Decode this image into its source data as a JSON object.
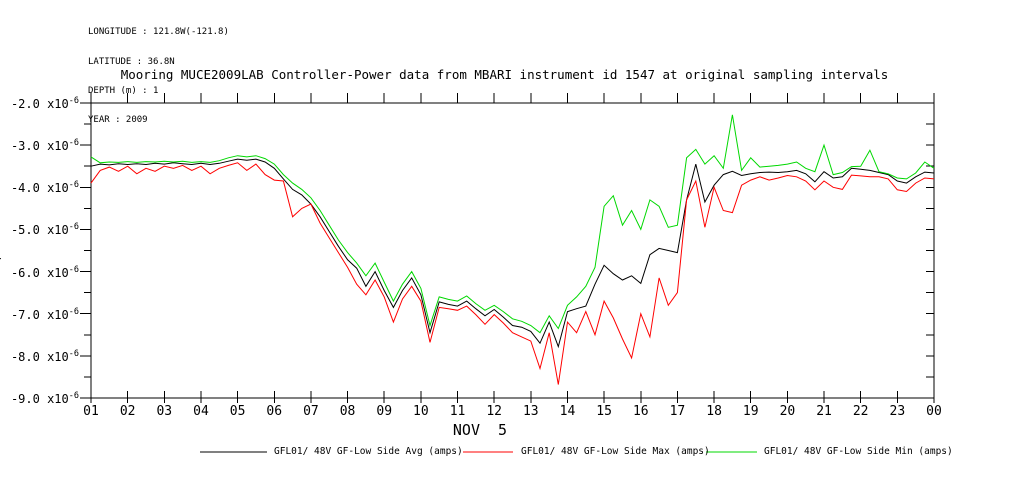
{
  "meta_block": {
    "lines": [
      "LONGITUDE : 121.8W(-121.8)",
      "LATITUDE : 36.8N",
      "DEPTH (m) : 1",
      "YEAR : 2009"
    ]
  },
  "title": "Mooring MUCE2009LAB Controller-Power data from MBARI instrument id 1547 at original sampling intervals",
  "chart_data": {
    "type": "line",
    "title": "Mooring MUCE2009LAB Controller-Power data from MBARI instrument id 1547 at original sampling intervals",
    "grid": false,
    "legend_position": "bottom",
    "x_start": 1,
    "x_step": 0.25,
    "x_axis": {
      "range": [
        1,
        24
      ],
      "tick_labels": [
        "01",
        "02",
        "03",
        "04",
        "05",
        "06",
        "07",
        "08",
        "09",
        "10",
        "11",
        "12",
        "13",
        "14",
        "15",
        "16",
        "17",
        "18",
        "19",
        "20",
        "21",
        "22",
        "23",
        "00"
      ],
      "date_label": "NOV  5"
    },
    "y_axis": {
      "range_e6": [
        -9,
        -2
      ],
      "tick_labels": [
        "-2.0",
        "-3.0",
        "-4.0",
        "-5.0",
        "-6.0",
        "-7.0",
        "-8.0",
        "-9.0"
      ],
      "exponent_base": "x10",
      "exponent_sup": "-6",
      "units": "amps",
      "clipped_label": "amps",
      "minor_tick_step_e6": 0.5
    },
    "value_scale": "1e-6",
    "series": [
      {
        "name": "GFL01/ 48V GF-Low Side Avg (amps)",
        "color": "#000000",
        "values": [
          -3.5,
          -3.45,
          -3.47,
          -3.44,
          -3.46,
          -3.44,
          -3.46,
          -3.43,
          -3.45,
          -3.42,
          -3.44,
          -3.46,
          -3.43,
          -3.46,
          -3.43,
          -3.38,
          -3.33,
          -3.36,
          -3.33,
          -3.4,
          -3.55,
          -3.8,
          -4.05,
          -4.18,
          -4.4,
          -4.7,
          -5.05,
          -5.4,
          -5.72,
          -5.92,
          -6.35,
          -6.0,
          -6.45,
          -6.85,
          -6.45,
          -6.15,
          -6.55,
          -7.45,
          -6.72,
          -6.78,
          -6.82,
          -6.7,
          -6.88,
          -7.05,
          -6.9,
          -7.08,
          -7.28,
          -7.32,
          -7.42,
          -7.7,
          -7.2,
          -7.78,
          -6.95,
          -6.88,
          -6.82,
          -6.3,
          -5.85,
          -6.05,
          -6.2,
          -6.1,
          -6.28,
          -5.6,
          -5.45,
          -5.5,
          -5.55,
          -4.3,
          -3.45,
          -4.35,
          -3.95,
          -3.7,
          -3.62,
          -3.72,
          -3.68,
          -3.65,
          -3.64,
          -3.65,
          -3.63,
          -3.6,
          -3.68,
          -3.87,
          -3.63,
          -3.78,
          -3.75,
          -3.55,
          -3.57,
          -3.6,
          -3.65,
          -3.7,
          -3.85,
          -3.9,
          -3.75,
          -3.64,
          -3.66
        ]
      },
      {
        "name": "GFL01/ 48V GF-Low Side Max (amps)",
        "color": "#ff0000",
        "values": [
          -3.9,
          -3.6,
          -3.52,
          -3.62,
          -3.5,
          -3.68,
          -3.55,
          -3.62,
          -3.5,
          -3.55,
          -3.48,
          -3.6,
          -3.5,
          -3.68,
          -3.55,
          -3.48,
          -3.42,
          -3.6,
          -3.45,
          -3.7,
          -3.83,
          -3.85,
          -4.7,
          -4.5,
          -4.4,
          -4.85,
          -5.2,
          -5.55,
          -5.9,
          -6.3,
          -6.55,
          -6.2,
          -6.6,
          -7.2,
          -6.65,
          -6.35,
          -6.7,
          -7.68,
          -6.85,
          -6.88,
          -6.92,
          -6.82,
          -7.02,
          -7.25,
          -7.02,
          -7.22,
          -7.45,
          -7.55,
          -7.65,
          -8.3,
          -7.45,
          -8.68,
          -7.2,
          -7.45,
          -6.95,
          -7.5,
          -6.7,
          -7.1,
          -7.6,
          -8.05,
          -7.0,
          -7.55,
          -6.15,
          -6.8,
          -6.5,
          -4.3,
          -3.85,
          -4.95,
          -4.0,
          -4.55,
          -4.6,
          -3.95,
          -3.83,
          -3.75,
          -3.83,
          -3.78,
          -3.72,
          -3.75,
          -3.85,
          -4.06,
          -3.85,
          -4.0,
          -4.05,
          -3.71,
          -3.73,
          -3.75,
          -3.75,
          -3.8,
          -4.06,
          -4.1,
          -3.9,
          -3.78,
          -3.8
        ]
      },
      {
        "name": "GFL01/ 48V GF-Low Side Min (amps)",
        "color": "#00d800",
        "values": [
          -3.28,
          -3.42,
          -3.4,
          -3.41,
          -3.39,
          -3.41,
          -3.39,
          -3.4,
          -3.38,
          -3.4,
          -3.38,
          -3.41,
          -3.39,
          -3.41,
          -3.37,
          -3.3,
          -3.25,
          -3.28,
          -3.25,
          -3.32,
          -3.45,
          -3.7,
          -3.9,
          -4.05,
          -4.25,
          -4.55,
          -4.9,
          -5.25,
          -5.55,
          -5.8,
          -6.1,
          -5.8,
          -6.25,
          -6.7,
          -6.3,
          -6.0,
          -6.4,
          -7.28,
          -6.6,
          -6.66,
          -6.7,
          -6.58,
          -6.76,
          -6.92,
          -6.8,
          -6.95,
          -7.12,
          -7.18,
          -7.28,
          -7.45,
          -7.05,
          -7.35,
          -6.8,
          -6.6,
          -6.35,
          -5.9,
          -4.45,
          -4.2,
          -4.9,
          -4.55,
          -5.0,
          -4.3,
          -4.45,
          -4.95,
          -4.9,
          -3.3,
          -3.1,
          -3.45,
          -3.25,
          -3.55,
          -2.28,
          -3.6,
          -3.3,
          -3.52,
          -3.5,
          -3.48,
          -3.45,
          -3.4,
          -3.55,
          -3.63,
          -3.0,
          -3.7,
          -3.65,
          -3.51,
          -3.5,
          -3.12,
          -3.63,
          -3.68,
          -3.78,
          -3.8,
          -3.66,
          -3.4,
          -3.55
        ]
      }
    ]
  }
}
